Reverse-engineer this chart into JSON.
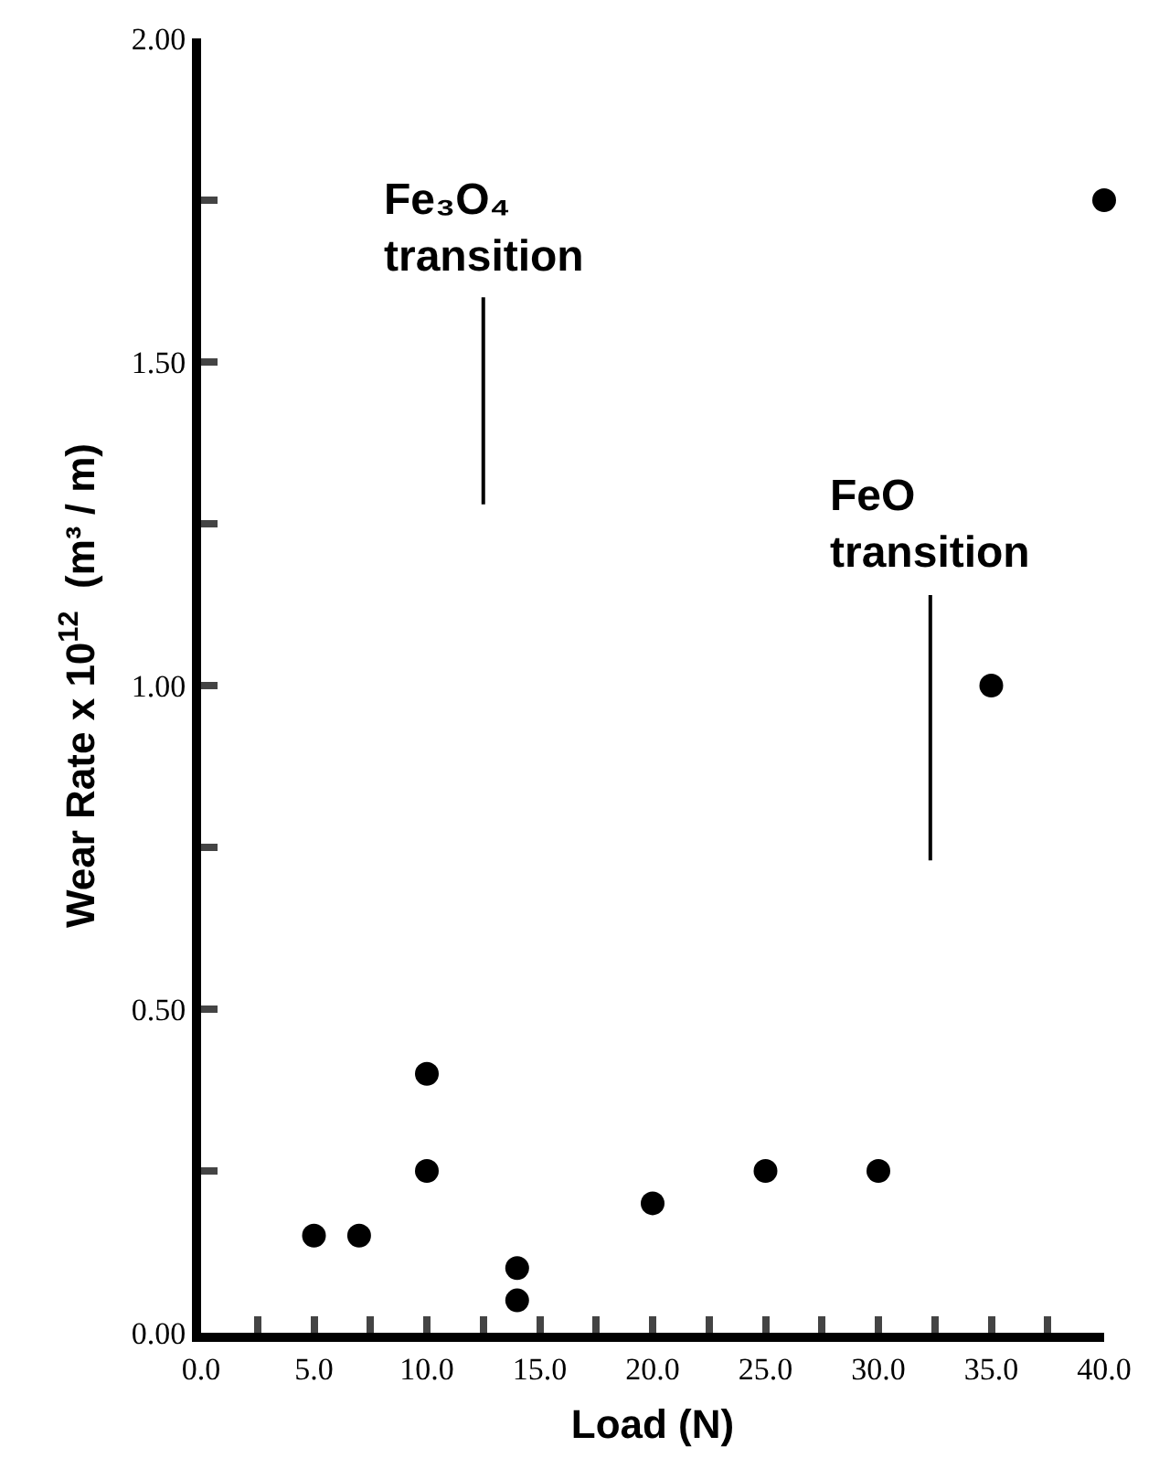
{
  "chart_data": {
    "type": "scatter",
    "xlabel": "Load (N)",
    "ylabel": "Wear Rate x 10$^{12}$  (m³ / m)",
    "x": [
      5,
      7,
      10,
      10,
      14,
      14,
      20,
      25,
      30,
      35,
      40
    ],
    "series": [
      {
        "color": "#000000",
        "values": [
          0.15,
          0.15,
          0.4,
          0.25,
          0.1,
          0.05,
          0.2,
          0.25,
          0.25,
          1.0,
          1.75
        ]
      }
    ],
    "xlim": [
      0,
      40
    ],
    "ylim": [
      0,
      2
    ],
    "xticks": [
      {
        "value": 0,
        "label": "0.0"
      },
      {
        "value": 2.5,
        "label": null
      },
      {
        "value": 5,
        "label": "5.0"
      },
      {
        "value": 7.5,
        "label": null
      },
      {
        "value": 10,
        "label": "10.0"
      },
      {
        "value": 12.5,
        "label": null
      },
      {
        "value": 15,
        "label": "15.0"
      },
      {
        "value": 17.5,
        "label": null
      },
      {
        "value": 20,
        "label": "20.0"
      },
      {
        "value": 22.5,
        "label": null
      },
      {
        "value": 25,
        "label": "25.0"
      },
      {
        "value": 27.5,
        "label": null
      },
      {
        "value": 30,
        "label": "30.0"
      },
      {
        "value": 32.5,
        "label": null
      },
      {
        "value": 35,
        "label": "35.0"
      },
      {
        "value": 37.5,
        "label": null
      },
      {
        "value": 40,
        "label": "40.0"
      }
    ],
    "yticks": [
      {
        "value": 0,
        "label": "0.00"
      },
      {
        "value": 0.25,
        "label": null
      },
      {
        "value": 0.5,
        "label": "0.50"
      },
      {
        "value": 0.75,
        "label": null
      },
      {
        "value": 1,
        "label": "1.00"
      },
      {
        "value": 1.25,
        "label": null
      },
      {
        "value": 1.5,
        "label": "1.50"
      },
      {
        "value": 1.75,
        "label": null
      },
      {
        "value": 2,
        "label": "2.00"
      }
    ],
    "ref_lines": [
      {
        "axis": "x",
        "value": 12.5,
        "label": "Fe₃O₄\ntransition"
      },
      {
        "axis": "x",
        "value": 32.3,
        "label": "FeO\ntransition"
      }
    ],
    "marker": "circle",
    "grid": false,
    "legend": false
  }
}
